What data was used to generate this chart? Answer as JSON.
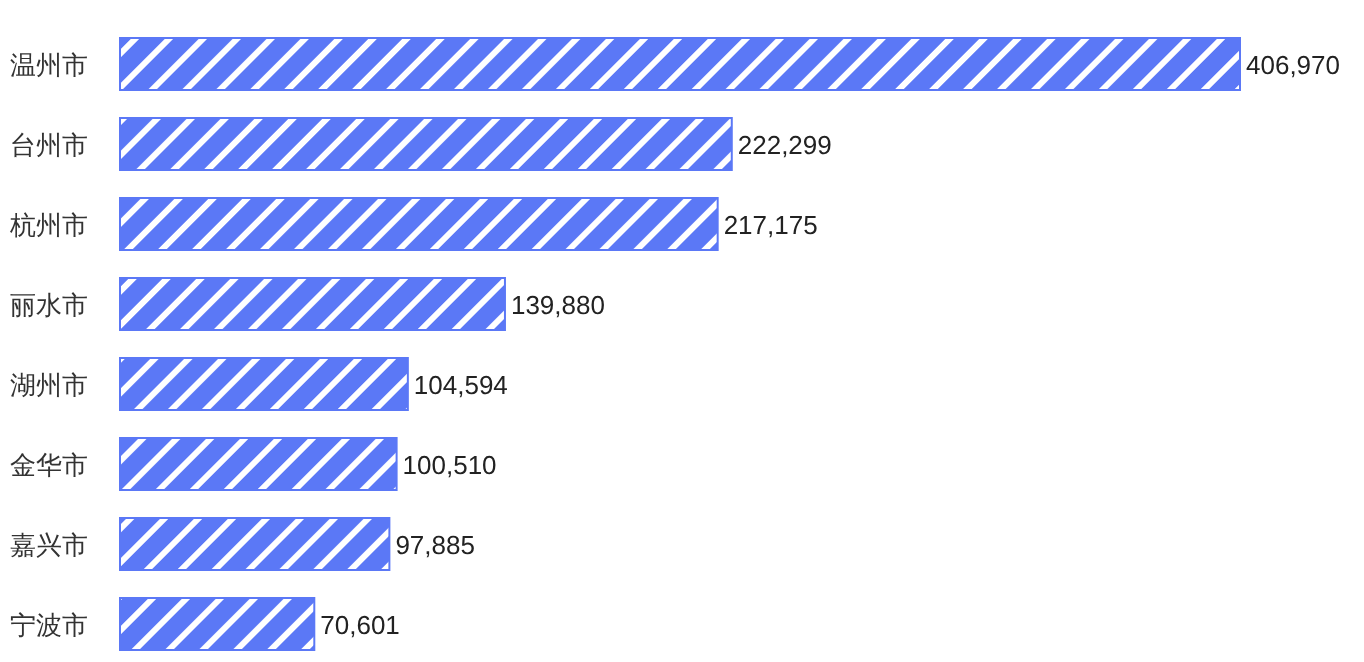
{
  "chart_data": {
    "type": "bar",
    "orientation": "horizontal",
    "categories": [
      "温州市",
      "台州市",
      "杭州市",
      "丽水市",
      "湖州市",
      "金华市",
      "嘉兴市",
      "宁波市"
    ],
    "values": [
      406970,
      222299,
      217175,
      139880,
      104594,
      100510,
      97885,
      70601
    ],
    "value_labels": [
      "406,970",
      "222,299",
      "217,175",
      "139,880",
      "104,594",
      "100,510",
      "97,885",
      "70,601"
    ],
    "color": "#5b78f6"
  }
}
